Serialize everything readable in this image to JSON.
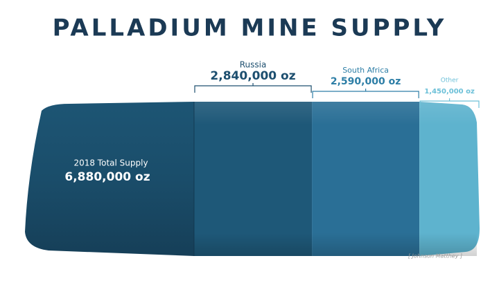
{
  "chart_data": {
    "type": "ingot",
    "title": "PALLADIUM MINE SUPPLY",
    "total": {
      "name": "2018 Total Supply",
      "value": 6880000,
      "value_label": "6,880,000 oz"
    },
    "series": [
      {
        "name": "Russia",
        "color": "#1e5878",
        "values": [
          2840000
        ],
        "value_labels": [
          "2,840,000 oz"
        ]
      },
      {
        "name": "South Africa",
        "color": "#2a6f96",
        "values": [
          2590000
        ],
        "value_labels": [
          "2,590,000 oz"
        ]
      },
      {
        "name": "Other",
        "color": "#5eb3ce",
        "values": [
          1450000
        ],
        "value_labels": [
          "1,450,000 oz"
        ]
      }
    ],
    "source": "[ Johnson Matthey ]"
  }
}
